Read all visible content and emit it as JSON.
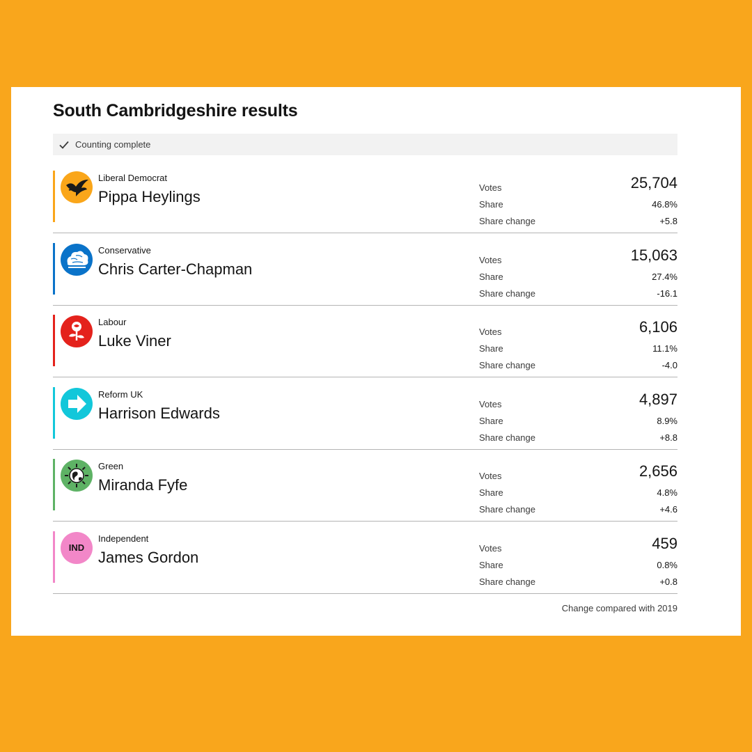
{
  "title": "South Cambridgeshire results",
  "status": {
    "text": "Counting complete",
    "icon": "check-icon"
  },
  "footnote": "Change compared with 2019",
  "labels": {
    "votes": "Votes",
    "share": "Share",
    "change": "Share change"
  },
  "candidates": [
    {
      "party": "Liberal Democrat",
      "name": "Pippa Heylings",
      "votes": "25,704",
      "share": "46.8%",
      "change": "+5.8",
      "color": "#FAA61A",
      "icon": "lib-dem-bird-icon"
    },
    {
      "party": "Conservative",
      "name": "Chris Carter-Chapman",
      "votes": "15,063",
      "share": "27.4%",
      "change": "-16.1",
      "color": "#0A73C9",
      "icon": "conservative-tree-icon"
    },
    {
      "party": "Labour",
      "name": "Luke Viner",
      "votes": "6,106",
      "share": "11.1%",
      "change": "-4.0",
      "color": "#E4221C",
      "icon": "labour-rose-icon"
    },
    {
      "party": "Reform UK",
      "name": "Harrison Edwards",
      "votes": "4,897",
      "share": "8.9%",
      "change": "+8.8",
      "color": "#12C7DA",
      "icon": "reform-arrow-icon"
    },
    {
      "party": "Green",
      "name": "Miranda Fyfe",
      "votes": "2,656",
      "share": "4.8%",
      "change": "+4.6",
      "color": "#5EB265",
      "icon": "green-globe-icon"
    },
    {
      "party": "Independent",
      "name": "James Gordon",
      "votes": "459",
      "share": "0.8%",
      "change": "+0.8",
      "color": "#F287C8",
      "icon": "independent-icon",
      "logo_text": "IND"
    }
  ]
}
